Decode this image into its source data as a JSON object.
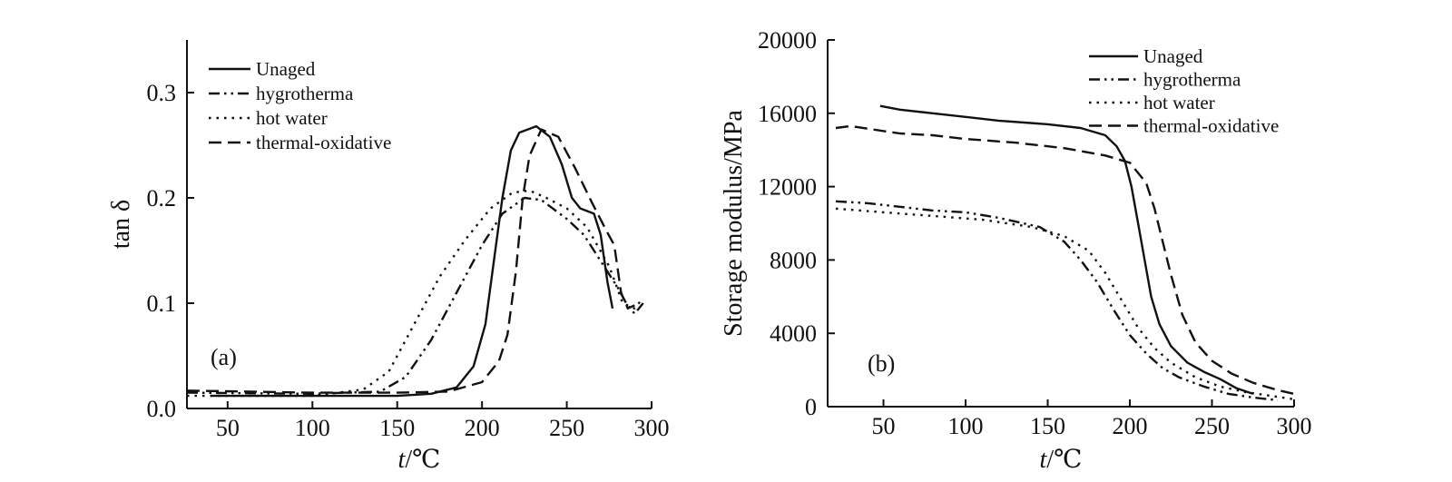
{
  "chart_data": [
    {
      "type": "line",
      "panel_label": "(a)",
      "xlabel_italic": "t",
      "xlabel_rest": "/℃",
      "ylabel": "tan δ",
      "xlim": [
        26,
        300
      ],
      "ylim": [
        0,
        0.35
      ],
      "x_ticks": [
        50,
        100,
        150,
        200,
        250,
        300
      ],
      "x_tick_labels": [
        "50",
        "100",
        "150",
        "200",
        "250",
        "300"
      ],
      "y_ticks": [
        0,
        0.1,
        0.2,
        0.3
      ],
      "y_tick_labels": [
        "0.0",
        "0.1",
        "0.2",
        "0.3"
      ],
      "legend_position": "top-left",
      "series": [
        {
          "name": "Unaged",
          "style": "solid",
          "points": [
            [
              40,
              0.012
            ],
            [
              100,
              0.012
            ],
            [
              150,
              0.012
            ],
            [
              170,
              0.014
            ],
            [
              185,
              0.02
            ],
            [
              195,
              0.04
            ],
            [
              202,
              0.08
            ],
            [
              207,
              0.14
            ],
            [
              212,
              0.2
            ],
            [
              217,
              0.245
            ],
            [
              222,
              0.262
            ],
            [
              232,
              0.268
            ],
            [
              240,
              0.258
            ],
            [
              247,
              0.232
            ],
            [
              253,
              0.2
            ],
            [
              258,
              0.19
            ],
            [
              266,
              0.185
            ],
            [
              270,
              0.165
            ],
            [
              274,
              0.12
            ],
            [
              277,
              0.095
            ]
          ]
        },
        {
          "name": "hygrotherma",
          "style": "dashdotdot",
          "points": [
            [
              26,
              0.015
            ],
            [
              100,
              0.014
            ],
            [
              140,
              0.016
            ],
            [
              155,
              0.03
            ],
            [
              170,
              0.065
            ],
            [
              185,
              0.11
            ],
            [
              200,
              0.155
            ],
            [
              212,
              0.185
            ],
            [
              225,
              0.2
            ],
            [
              235,
              0.198
            ],
            [
              250,
              0.18
            ],
            [
              260,
              0.165
            ],
            [
              270,
              0.14
            ],
            [
              280,
              0.115
            ],
            [
              285,
              0.1
            ],
            [
              290,
              0.09
            ],
            [
              295,
              0.1
            ]
          ]
        },
        {
          "name": "hot water",
          "style": "dotted",
          "points": [
            [
              26,
              0.012
            ],
            [
              100,
              0.012
            ],
            [
              130,
              0.018
            ],
            [
              145,
              0.035
            ],
            [
              160,
              0.08
            ],
            [
              175,
              0.125
            ],
            [
              190,
              0.16
            ],
            [
              205,
              0.19
            ],
            [
              218,
              0.205
            ],
            [
              228,
              0.207
            ],
            [
              238,
              0.2
            ],
            [
              250,
              0.19
            ],
            [
              262,
              0.172
            ],
            [
              275,
              0.135
            ],
            [
              283,
              0.1
            ],
            [
              290,
              0.095
            ],
            [
              295,
              0.105
            ]
          ]
        },
        {
          "name": "thermal-oxidative",
          "style": "dashed",
          "points": [
            [
              26,
              0.017
            ],
            [
              100,
              0.015
            ],
            [
              150,
              0.015
            ],
            [
              180,
              0.016
            ],
            [
              200,
              0.025
            ],
            [
              210,
              0.045
            ],
            [
              215,
              0.07
            ],
            [
              220,
              0.13
            ],
            [
              224,
              0.2
            ],
            [
              228,
              0.24
            ],
            [
              235,
              0.265
            ],
            [
              245,
              0.258
            ],
            [
              255,
              0.228
            ],
            [
              265,
              0.195
            ],
            [
              273,
              0.17
            ],
            [
              278,
              0.155
            ],
            [
              282,
              0.11
            ],
            [
              286,
              0.095
            ],
            [
              290,
              0.098
            ]
          ]
        }
      ]
    },
    {
      "type": "line",
      "panel_label": "(b)",
      "xlabel_italic": "t",
      "xlabel_rest": "/℃",
      "ylabel": "Storage modulus/MPa",
      "xlim": [
        16,
        300
      ],
      "ylim": [
        0,
        20000
      ],
      "x_ticks": [
        50,
        100,
        150,
        200,
        250,
        300
      ],
      "x_tick_labels": [
        "50",
        "100",
        "150",
        "200",
        "250",
        "300"
      ],
      "y_ticks": [
        0,
        4000,
        8000,
        12000,
        16000,
        20000
      ],
      "y_tick_labels": [
        "0",
        "4000",
        "8000",
        "12000",
        "16000",
        "20000"
      ],
      "legend_position": "top-right",
      "series": [
        {
          "name": "Unaged",
          "style": "solid",
          "points": [
            [
              48,
              16400
            ],
            [
              60,
              16200
            ],
            [
              80,
              16000
            ],
            [
              100,
              15800
            ],
            [
              120,
              15600
            ],
            [
              150,
              15400
            ],
            [
              170,
              15200
            ],
            [
              185,
              14800
            ],
            [
              192,
              14200
            ],
            [
              197,
              13400
            ],
            [
              201,
              12000
            ],
            [
              205,
              10000
            ],
            [
              209,
              8000
            ],
            [
              213,
              6000
            ],
            [
              218,
              4500
            ],
            [
              225,
              3300
            ],
            [
              235,
              2400
            ],
            [
              245,
              1900
            ],
            [
              255,
              1500
            ],
            [
              265,
              1000
            ],
            [
              275,
              700
            ]
          ]
        },
        {
          "name": "hygrotherma",
          "style": "dashdotdot",
          "points": [
            [
              21,
              11200
            ],
            [
              40,
              11100
            ],
            [
              60,
              10900
            ],
            [
              80,
              10700
            ],
            [
              100,
              10600
            ],
            [
              120,
              10300
            ],
            [
              145,
              9800
            ],
            [
              160,
              9000
            ],
            [
              170,
              8000
            ],
            [
              180,
              6800
            ],
            [
              190,
              5300
            ],
            [
              200,
              3900
            ],
            [
              210,
              2900
            ],
            [
              220,
              2100
            ],
            [
              230,
              1600
            ],
            [
              245,
              1100
            ],
            [
              260,
              700
            ],
            [
              275,
              500
            ],
            [
              290,
              350
            ]
          ]
        },
        {
          "name": "hot water",
          "style": "dotted",
          "points": [
            [
              21,
              10800
            ],
            [
              50,
              10600
            ],
            [
              80,
              10400
            ],
            [
              110,
              10200
            ],
            [
              140,
              9800
            ],
            [
              160,
              9300
            ],
            [
              175,
              8500
            ],
            [
              185,
              7300
            ],
            [
              195,
              5800
            ],
            [
              205,
              4300
            ],
            [
              215,
              3200
            ],
            [
              225,
              2400
            ],
            [
              240,
              1600
            ],
            [
              255,
              1100
            ],
            [
              270,
              800
            ],
            [
              285,
              600
            ],
            [
              300,
              400
            ]
          ]
        },
        {
          "name": "thermal-oxidative",
          "style": "dashed",
          "points": [
            [
              21,
              15200
            ],
            [
              30,
              15300
            ],
            [
              45,
              15100
            ],
            [
              60,
              14900
            ],
            [
              80,
              14800
            ],
            [
              100,
              14600
            ],
            [
              130,
              14400
            ],
            [
              160,
              14100
            ],
            [
              185,
              13700
            ],
            [
              200,
              13300
            ],
            [
              210,
              12200
            ],
            [
              215,
              10800
            ],
            [
              220,
              9000
            ],
            [
              225,
              7200
            ],
            [
              232,
              5000
            ],
            [
              240,
              3500
            ],
            [
              250,
              2500
            ],
            [
              262,
              1800
            ],
            [
              275,
              1300
            ],
            [
              290,
              900
            ],
            [
              300,
              700
            ]
          ]
        }
      ]
    }
  ]
}
